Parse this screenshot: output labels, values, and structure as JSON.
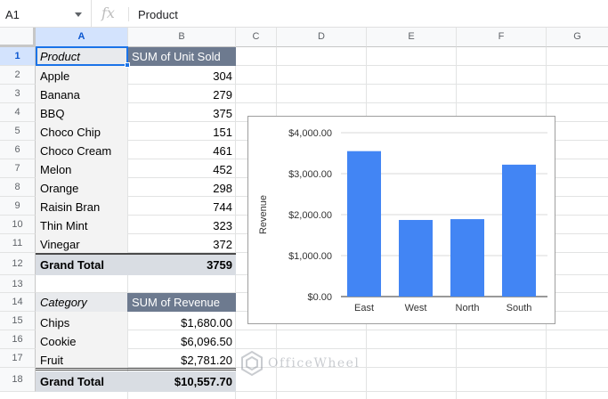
{
  "formula_bar": {
    "cell_ref": "A1",
    "fx_label": "fx",
    "content": "Product"
  },
  "columns": [
    "A",
    "B",
    "C",
    "D",
    "E",
    "F",
    "G"
  ],
  "rows": [
    "1",
    "2",
    "3",
    "4",
    "5",
    "6",
    "7",
    "8",
    "9",
    "10",
    "11",
    "12",
    "13",
    "14",
    "15",
    "16",
    "17",
    "18"
  ],
  "pivot1": {
    "header_a": "Product",
    "header_b": "SUM of Unit Sold",
    "rows": [
      {
        "label": "Apple",
        "value": "304"
      },
      {
        "label": "Banana",
        "value": "279"
      },
      {
        "label": "BBQ",
        "value": "375"
      },
      {
        "label": "Choco Chip",
        "value": "151"
      },
      {
        "label": "Choco Cream",
        "value": "461"
      },
      {
        "label": "Melon",
        "value": "452"
      },
      {
        "label": "Orange",
        "value": "298"
      },
      {
        "label": "Raisin Bran",
        "value": "744"
      },
      {
        "label": "Thin Mint",
        "value": "323"
      },
      {
        "label": "Vinegar",
        "value": "372"
      }
    ],
    "total_label": "Grand Total",
    "total_value": "3759"
  },
  "pivot2": {
    "header_a": "Category",
    "header_b": "SUM of Revenue",
    "rows": [
      {
        "label": "Chips",
        "value": "$1,680.00"
      },
      {
        "label": "Cookie",
        "value": "$6,096.50"
      },
      {
        "label": "Fruit",
        "value": "$2,781.20"
      }
    ],
    "total_label": "Grand Total",
    "total_value": "$10,557.70"
  },
  "chart_data": {
    "type": "bar",
    "categories": [
      "East",
      "West",
      "North",
      "South"
    ],
    "values": [
      3550,
      1870,
      1890,
      3220
    ],
    "ylabel": "Revenue",
    "xlabel": "",
    "ylim": [
      0,
      4000
    ],
    "yticks": [
      "$0.00",
      "$1,000.00",
      "$2,000.00",
      "$3,000.00",
      "$4,000.00"
    ],
    "bar_color": "#4285f4",
    "grid": true
  },
  "watermark": {
    "text": "OfficeWheel"
  },
  "colors": {
    "selection": "#1a73e8",
    "pivot_header": "#6d7a8f",
    "total_row": "#d9dde3"
  }
}
